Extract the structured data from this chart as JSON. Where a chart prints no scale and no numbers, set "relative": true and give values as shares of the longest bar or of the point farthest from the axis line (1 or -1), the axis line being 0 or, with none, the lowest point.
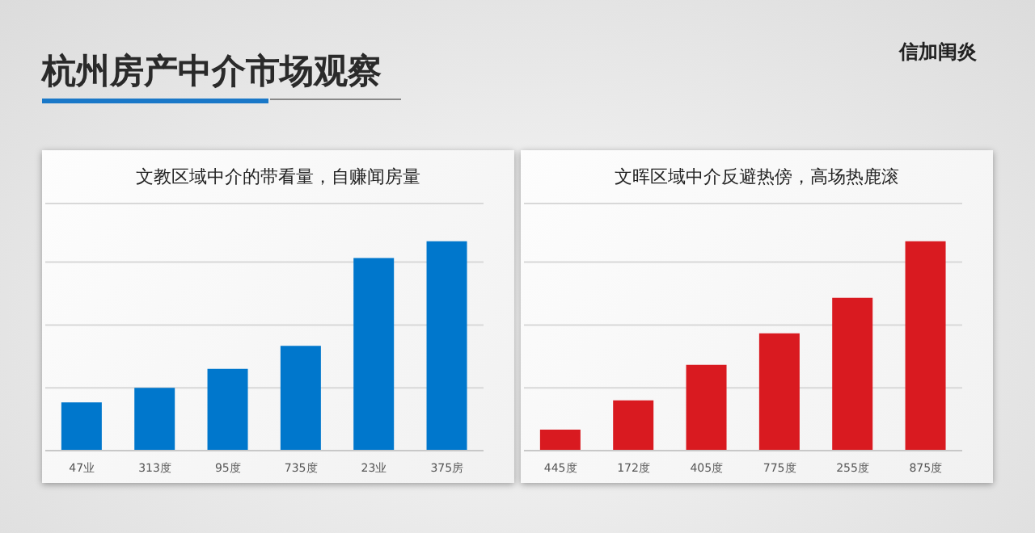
{
  "chart_data": [
    {
      "type": "other",
      "title": "杭州房产中介市场观察",
      "annotations": [
        "信加闺炎"
      ]
    },
    {
      "type": "bar",
      "title": "文教区域中介的带看量，自赚闻房量",
      "categories": [
        "47业",
        "313度",
        "95度",
        "735度",
        "23业",
        "375房"
      ],
      "series": [
        {
          "color": "#0077cc",
          "values": [
            0.23,
            0.3,
            0.39,
            0.5,
            0.92,
            1
          ]
        }
      ],
      "relative": true,
      "grid": "y"
    },
    {
      "type": "bar",
      "title": "文晖区域中介反避热傍，高场热鹿滚",
      "categories": [
        "445度",
        "172度",
        "405度",
        "775度",
        "255度",
        "875度"
      ],
      "series": [
        {
          "color": "#d91a20",
          "values": [
            0.1,
            0.24,
            0.41,
            0.56,
            0.73,
            1
          ]
        }
      ],
      "relative": true,
      "grid": "y"
    }
  ]
}
